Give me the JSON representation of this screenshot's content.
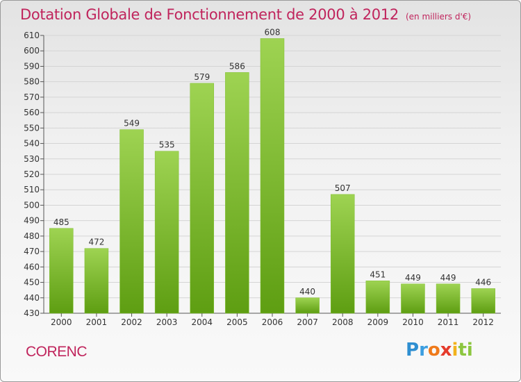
{
  "header": {
    "title": "Dotation Globale de Fonctionnement de 2000 à 2012",
    "subtitle": "(en milliers d'€)"
  },
  "footer": {
    "commune": "CORENC",
    "logo_letters": [
      "P",
      "r",
      "o",
      "x",
      "i",
      "ti"
    ]
  },
  "colors": {
    "title": "#c0245c",
    "bar_top": "#9ed352",
    "bar_bottom": "#5e9e12",
    "grid": "#d4d4d4"
  },
  "chart_data": {
    "type": "bar",
    "title": "Dotation Globale de Fonctionnement de 2000 à 2012",
    "subtitle": "(en milliers d'€)",
    "categories": [
      "2000",
      "2001",
      "2002",
      "2003",
      "2004",
      "2005",
      "2006",
      "2007",
      "2008",
      "2009",
      "2010",
      "2011",
      "2012"
    ],
    "values": [
      485,
      472,
      549,
      535,
      579,
      586,
      608,
      440,
      507,
      451,
      449,
      449,
      446
    ],
    "ylim": [
      430,
      610
    ],
    "yticks": [
      430,
      440,
      450,
      460,
      470,
      480,
      490,
      500,
      510,
      520,
      530,
      540,
      550,
      560,
      570,
      580,
      590,
      600,
      610
    ],
    "grid": true,
    "xlabel": "",
    "ylabel": ""
  }
}
